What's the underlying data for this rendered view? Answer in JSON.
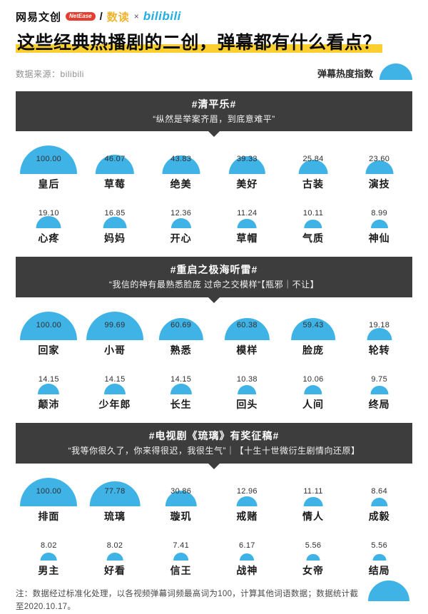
{
  "page": {
    "brand": {
      "left": "网易文创",
      "badge": "NetEase",
      "slash": "/",
      "sub": "数读",
      "times": "×",
      "right": "bilibili"
    },
    "title": "这些经典热播剧的二创，弹幕都有什么看点？",
    "source_label": "数据来源：",
    "source_value": "bilibili",
    "legend_label": "弹幕热度指数",
    "footnote": "注：数据经过标准化处理，以各视频弹幕词频最高词为100，计算其他词语数据；数据统计截至2020.10.17。"
  },
  "colors": {
    "accent_blue": "#3fb3e6",
    "bar_dark": "#3d3d3d",
    "highlight_yellow": "#fccf31",
    "badge_red": "#e53e30",
    "bili_blue": "#23ade5"
  },
  "chart_data": [
    {
      "type": "bar",
      "mark": "semicircle-area",
      "title": "#清平乐#",
      "subtitle": "“纵然是举案齐眉，到底意难平”",
      "categories": [
        "皇后",
        "草莓",
        "绝美",
        "美好",
        "古装",
        "演技",
        "心疼",
        "妈妈",
        "开心",
        "草帽",
        "气质",
        "神仙"
      ],
      "values": [
        100.0,
        46.07,
        43.83,
        39.33,
        25.84,
        23.6,
        19.1,
        16.85,
        12.36,
        11.24,
        10.11,
        8.99
      ],
      "ylim": [
        0,
        100
      ],
      "legend_position": "top-right"
    },
    {
      "type": "bar",
      "mark": "semicircle-area",
      "title": "#重启之极海听雷#",
      "subtitle": "“我信的神有最熟悉脸庞 过命之交模样”【瓶邪｜不让】",
      "categories": [
        "回家",
        "小哥",
        "熟悉",
        "模样",
        "脸庞",
        "轮转",
        "颠沛",
        "少年郎",
        "长生",
        "回头",
        "人间",
        "终局"
      ],
      "values": [
        100.0,
        99.69,
        60.69,
        60.38,
        59.43,
        19.18,
        14.15,
        14.15,
        14.15,
        10.38,
        10.06,
        9.75
      ],
      "ylim": [
        0,
        100
      ],
      "legend_position": "top-right"
    },
    {
      "type": "bar",
      "mark": "semicircle-area",
      "title": "#电视剧《琉璃》有奖征稿#",
      "subtitle": "“我等你很久了，你来得很迟，我很生气”｜【十生十世微衍生剧情向还原】",
      "categories": [
        "排面",
        "琉璃",
        "璇玑",
        "戒赌",
        "情人",
        "成毅",
        "男主",
        "好看",
        "信王",
        "战神",
        "女帝",
        "结局"
      ],
      "values": [
        100.0,
        77.78,
        30.86,
        12.96,
        11.11,
        8.64,
        8.02,
        8.02,
        7.41,
        6.17,
        5.56,
        5.56
      ],
      "ylim": [
        0,
        100
      ],
      "legend_position": "top-right"
    }
  ]
}
